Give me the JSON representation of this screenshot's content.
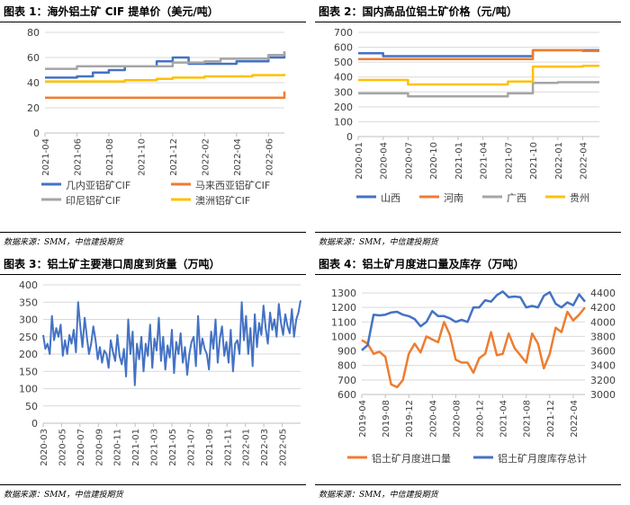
{
  "source_text": "数据来源：SMM，中信建投期货",
  "chart_data": [
    {
      "type": "line",
      "title": "图表 1：海外铝土矿 CIF 提单价（美元/吨）",
      "x": [
        "2021-04",
        "2021-05",
        "2021-06",
        "2021-07",
        "2021-08",
        "2021-09",
        "2021-10",
        "2021-11",
        "2021-12",
        "2022-01",
        "2022-02",
        "2022-03",
        "2022-04",
        "2022-05",
        "2022-06",
        "2022-07"
      ],
      "xticks": [
        "2021-04",
        "2021-06",
        "2021-08",
        "2021-10",
        "2021-12",
        "2022-02",
        "2022-04",
        "2022-06"
      ],
      "ylim": [
        0,
        80
      ],
      "yticks": [
        0,
        20,
        40,
        60,
        80
      ],
      "series": [
        {
          "name": "几内亚铝矿CIF",
          "color": "#4472c4",
          "values": [
            44,
            44,
            45,
            48,
            50,
            53,
            53,
            57,
            60,
            55,
            55,
            55,
            57,
            57,
            60,
            64
          ]
        },
        {
          "name": "马来西亚铝矿CIF",
          "color": "#ed7d31",
          "values": [
            28,
            28,
            28,
            28,
            28,
            28,
            28,
            28,
            28,
            28,
            28,
            28,
            28,
            28,
            28,
            33
          ]
        },
        {
          "name": "印尼铝矿CIF",
          "color": "#a5a5a5",
          "values": [
            51,
            51,
            53,
            53,
            53,
            53,
            53,
            53,
            56,
            56,
            57,
            59,
            59,
            59,
            62,
            65
          ]
        },
        {
          "name": "澳洲铝矿CIF",
          "color": "#ffc000",
          "values": [
            41,
            41,
            41,
            41,
            41,
            42,
            42,
            43,
            44,
            44,
            45,
            45,
            45,
            46,
            46,
            47
          ]
        }
      ]
    },
    {
      "type": "line",
      "title": "图表 2：国内高品位铝土矿价格（元/吨）",
      "x": [
        "2020-01",
        "2020-04",
        "2020-07",
        "2020-10",
        "2021-01",
        "2021-04",
        "2021-07",
        "2021-10",
        "2022-01",
        "2022-04",
        "2022-06"
      ],
      "xticks": [
        "2020-01",
        "2020-04",
        "2020-07",
        "2020-10",
        "2021-01",
        "2021-04",
        "2021-07",
        "2021-10",
        "2022-01",
        "2022-04"
      ],
      "ylim": [
        0,
        700
      ],
      "yticks": [
        0,
        100,
        200,
        300,
        400,
        500,
        600,
        700
      ],
      "series": [
        {
          "name": "山西",
          "color": "#4472c4",
          "values": [
            560,
            540,
            540,
            540,
            540,
            540,
            540,
            580,
            580,
            580,
            580
          ]
        },
        {
          "name": "河南",
          "color": "#ed7d31",
          "values": [
            520,
            520,
            520,
            520,
            520,
            520,
            520,
            580,
            580,
            575,
            575
          ]
        },
        {
          "name": "广西",
          "color": "#a5a5a5",
          "values": [
            290,
            290,
            270,
            270,
            270,
            270,
            290,
            360,
            365,
            365,
            365
          ]
        },
        {
          "name": "贵州",
          "color": "#ffc000",
          "values": [
            380,
            380,
            350,
            350,
            350,
            350,
            370,
            470,
            470,
            475,
            475
          ]
        }
      ]
    },
    {
      "type": "line",
      "title": "图表 3：铝土矿主要港口周度到货量（万吨）",
      "x_start": "2020-03",
      "x_end": "2022-07",
      "xticks": [
        "2020-03",
        "2020-05",
        "2020-07",
        "2020-09",
        "2020-11",
        "2021-01",
        "2021-03",
        "2021-05",
        "2021-07",
        "2021-09",
        "2021-11",
        "2022-01",
        "2022-03",
        "2022-05"
      ],
      "ylim": [
        0,
        400
      ],
      "yticks": [
        0,
        50,
        100,
        150,
        200,
        250,
        300,
        350,
        400
      ],
      "series": [
        {
          "name": "周度到货量",
          "color": "#4472c4",
          "values": [
            255,
            215,
            230,
            200,
            310,
            240,
            275,
            250,
            285,
            195,
            240,
            200,
            255,
            230,
            270,
            205,
            350,
            280,
            220,
            305,
            250,
            200,
            230,
            280,
            240,
            185,
            220,
            175,
            210,
            200,
            160,
            240,
            205,
            180,
            255,
            195,
            170,
            215,
            135,
            300,
            200,
            265,
            110,
            230,
            185,
            250,
            150,
            230,
            195,
            285,
            160,
            245,
            210,
            305,
            180,
            250,
            155,
            225,
            190,
            270,
            145,
            235,
            200,
            260,
            175,
            220,
            140,
            200,
            235,
            250,
            165,
            310,
            200,
            245,
            215,
            200,
            155,
            265,
            215,
            300,
            175,
            245,
            280,
            195,
            235,
            175,
            270,
            150,
            230,
            240,
            200,
            350,
            240,
            310,
            200,
            275,
            165,
            315,
            220,
            290,
            255,
            340,
            275,
            230,
            320,
            270,
            300,
            250,
            345,
            290,
            255,
            315,
            280,
            260,
            330,
            250,
            300,
            320,
            355
          ]
        }
      ]
    },
    {
      "type": "line",
      "title": "图表 4：铝土矿月度进口量及库存（万吨）",
      "x": [
        "2019-04",
        "2019-05",
        "2019-06",
        "2019-07",
        "2019-08",
        "2019-09",
        "2019-10",
        "2019-11",
        "2019-12",
        "2020-01",
        "2020-02",
        "2020-03",
        "2020-04",
        "2020-05",
        "2020-06",
        "2020-07",
        "2020-08",
        "2020-09",
        "2020-10",
        "2020-11",
        "2020-12",
        "2021-01",
        "2021-02",
        "2021-03",
        "2021-04",
        "2021-05",
        "2021-06",
        "2021-07",
        "2021-08",
        "2021-09",
        "2021-10",
        "2021-11",
        "2021-12",
        "2022-01",
        "2022-02",
        "2022-03",
        "2022-04",
        "2022-05",
        "2022-06"
      ],
      "xticks": [
        "2019-04",
        "2019-08",
        "2019-12",
        "2020-04",
        "2020-08",
        "2020-12",
        "2021-04",
        "2021-08",
        "2021-12",
        "2022-04"
      ],
      "ylim": [
        600,
        1300
      ],
      "yticks": [
        600,
        700,
        800,
        900,
        1000,
        1100,
        1200,
        1300
      ],
      "y2lim": [
        3000,
        4400
      ],
      "y2ticks": [
        3000,
        3200,
        3400,
        3600,
        3800,
        4000,
        4200,
        4400
      ],
      "series": [
        {
          "name": "铝土矿月度进口量",
          "axis": "left",
          "color": "#ed7d31",
          "values": [
            975,
            950,
            880,
            895,
            860,
            670,
            650,
            700,
            880,
            950,
            890,
            1000,
            980,
            960,
            1100,
            1010,
            840,
            820,
            820,
            750,
            850,
            880,
            1030,
            870,
            880,
            1020,
            920,
            870,
            820,
            1020,
            950,
            780,
            880,
            1060,
            1030,
            1170,
            1110,
            1150,
            1200
          ]
        },
        {
          "name": "铝土矿月度库存总计",
          "axis": "right",
          "color": "#4472c4",
          "values": [
            3610,
            3680,
            4100,
            4090,
            4100,
            4130,
            4140,
            4100,
            4080,
            4040,
            3940,
            4000,
            4150,
            4080,
            4080,
            4050,
            4000,
            4030,
            4000,
            4200,
            4200,
            4300,
            4280,
            4370,
            4420,
            4340,
            4350,
            4340,
            4200,
            4220,
            4200,
            4360,
            4410,
            4250,
            4200,
            4270,
            4230,
            4380,
            4280
          ]
        }
      ]
    }
  ]
}
